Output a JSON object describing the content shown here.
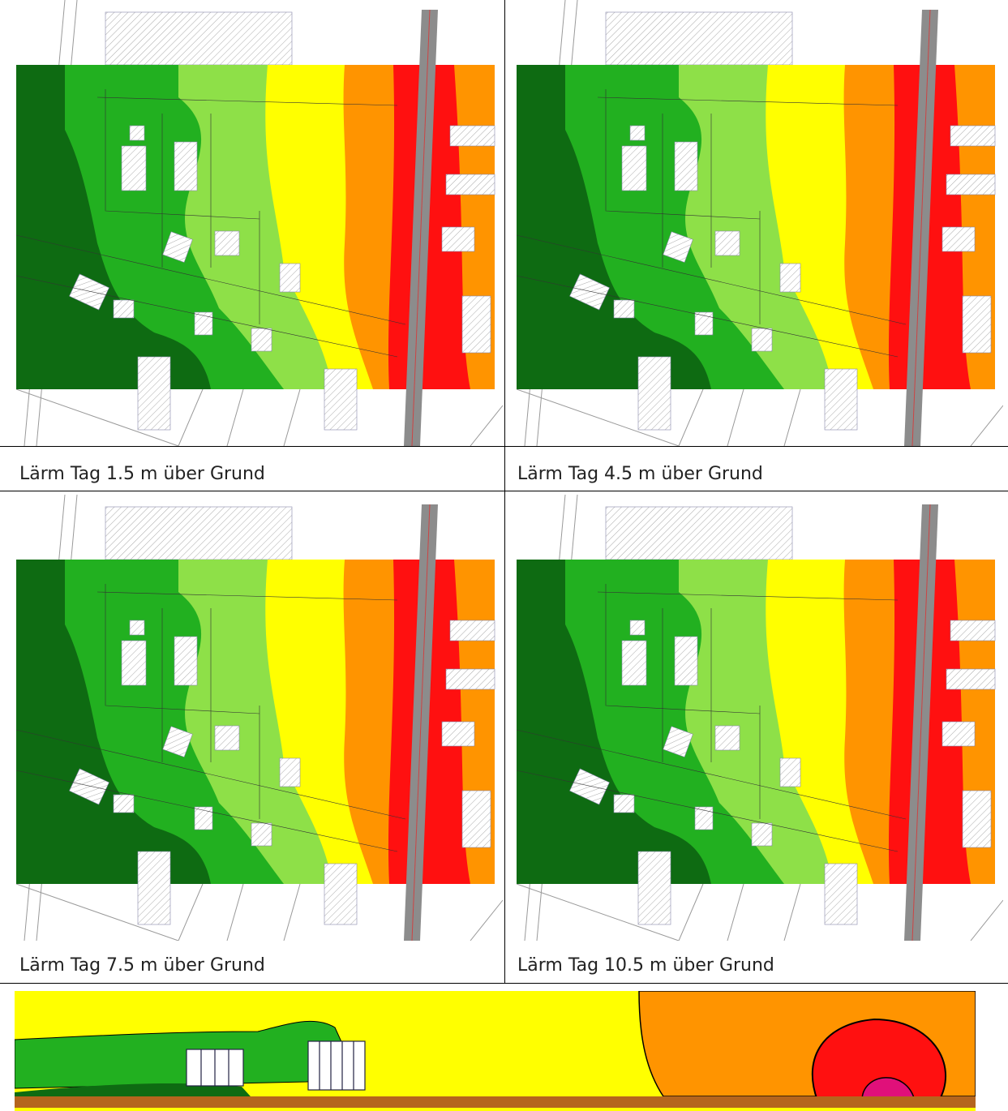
{
  "captions": [
    "Lärm Tag 1.5 m über Grund",
    "Lärm Tag 4.5 m über Grund",
    "Lärm Tag 7.5 m über Grund",
    "Lärm Tag 10.5 m über Grund"
  ]
}
